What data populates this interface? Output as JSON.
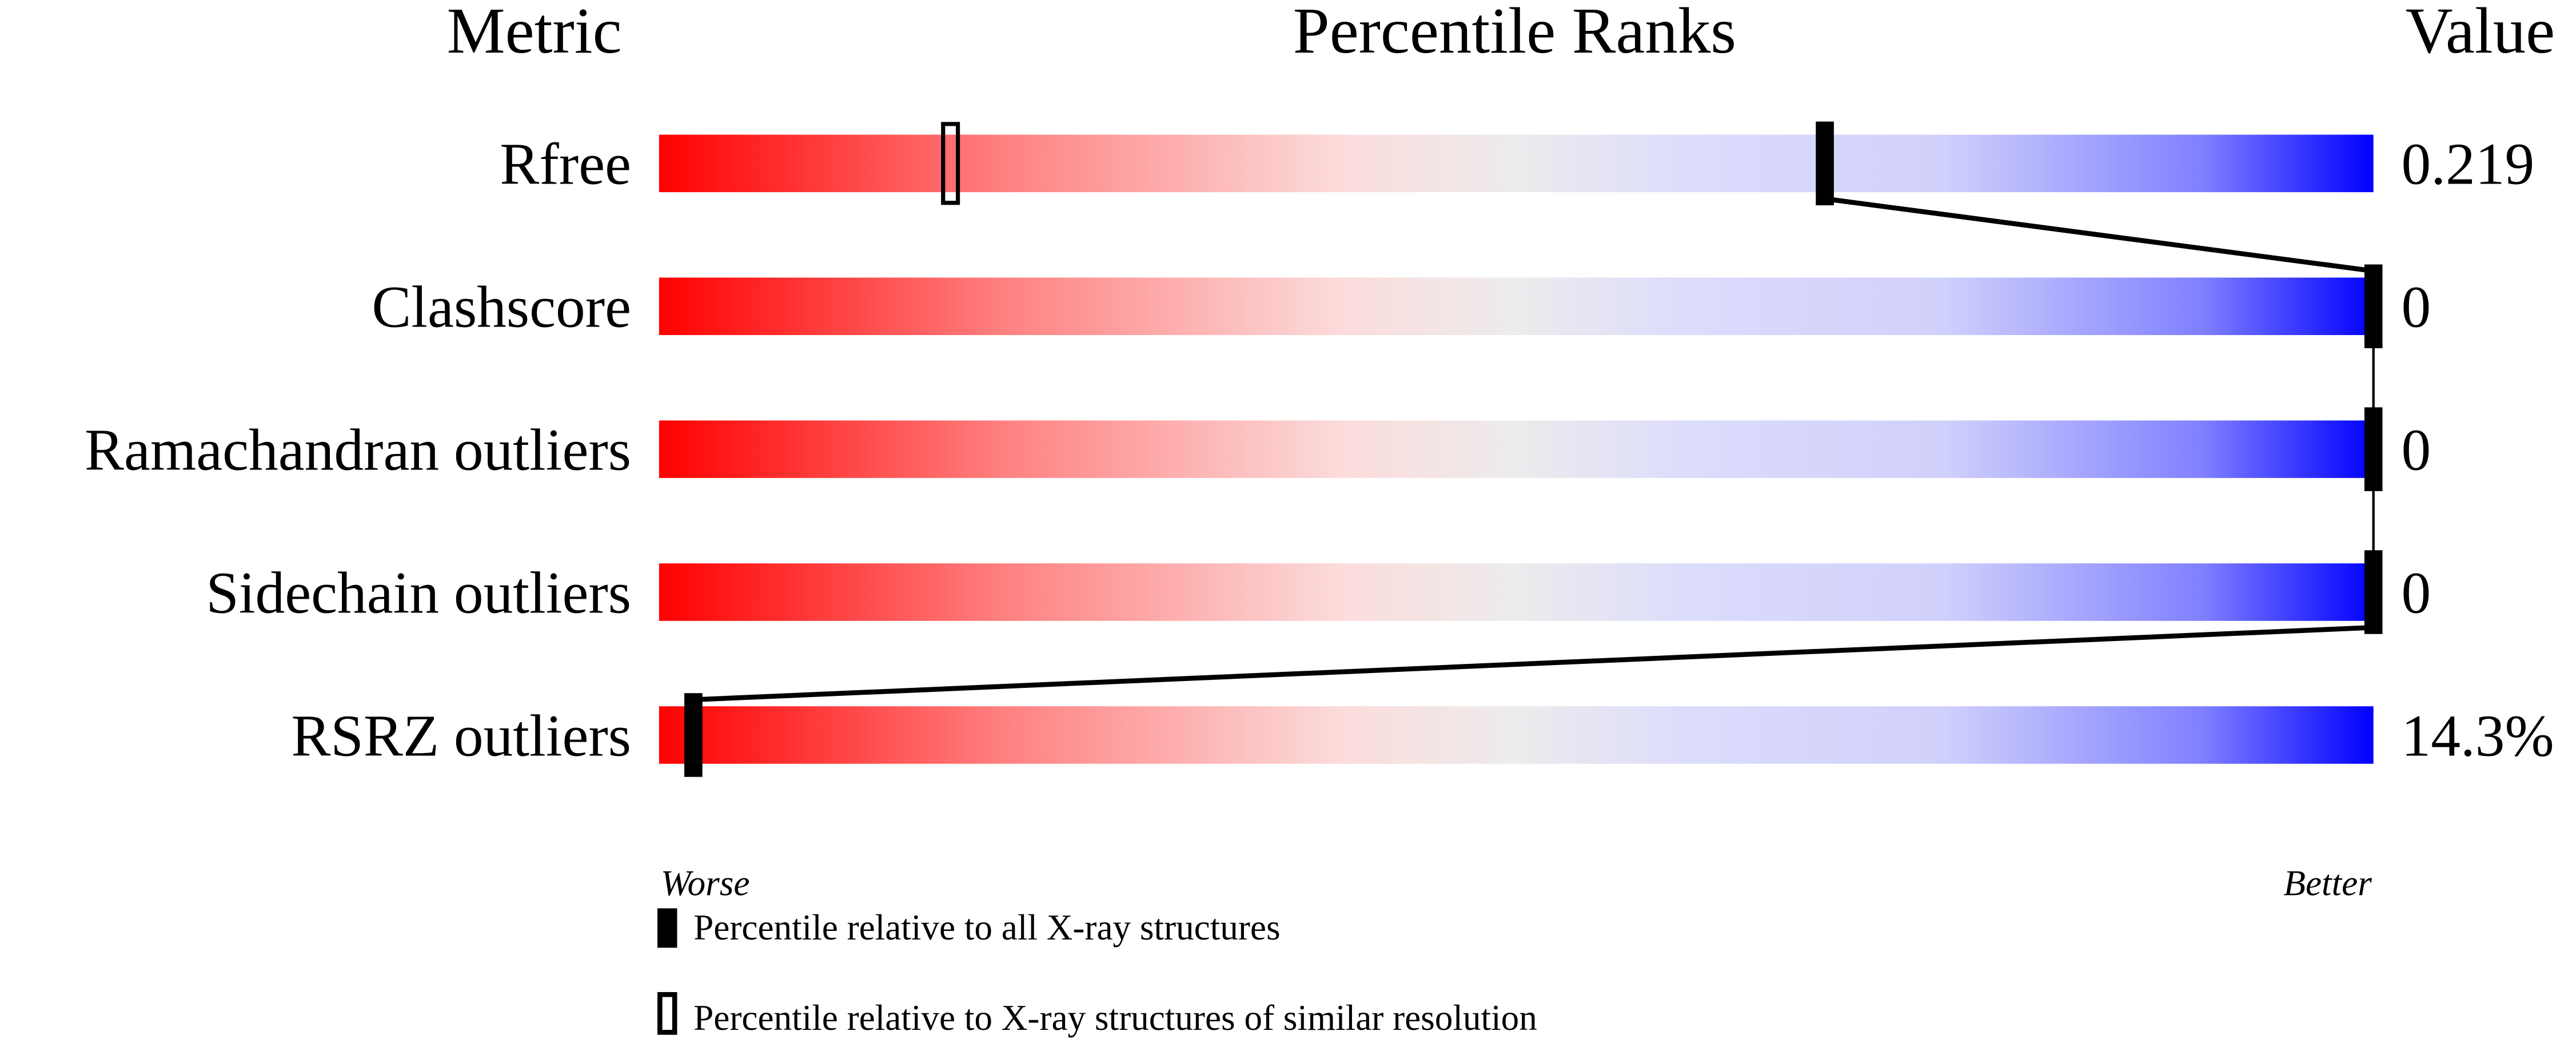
{
  "chart_data": {
    "type": "percentile-bar",
    "headers": {
      "metric": "Metric",
      "ranks": "Percentile Ranks",
      "value": "Value"
    },
    "axis": {
      "min_label": "Worse",
      "max_label": "Better",
      "range": [
        0,
        100
      ]
    },
    "gradient_colors": [
      "#ff0000",
      "#ff8080",
      "#fcdcdc",
      "#ececec",
      "#dcdcfc",
      "#d0d0fc",
      "#8080ff",
      "#0000ff"
    ],
    "metrics": [
      {
        "name": "Rfree",
        "value": "0.219",
        "percentile_all": 68,
        "percentile_similar": 17
      },
      {
        "name": "Clashscore",
        "value": "0",
        "percentile_all": 100,
        "percentile_similar": null
      },
      {
        "name": "Ramachandran outliers",
        "value": "0",
        "percentile_all": 100,
        "percentile_similar": null
      },
      {
        "name": "Sidechain outliers",
        "value": "0",
        "percentile_all": 100,
        "percentile_similar": null
      },
      {
        "name": "RSRZ outliers",
        "value": "14.3%",
        "percentile_all": 2,
        "percentile_similar": null
      }
    ],
    "legend": [
      {
        "marker": "filled",
        "label": "Percentile relative to all X-ray structures"
      },
      {
        "marker": "hollow",
        "label": "Percentile relative to X-ray structures of similar resolution"
      }
    ]
  }
}
